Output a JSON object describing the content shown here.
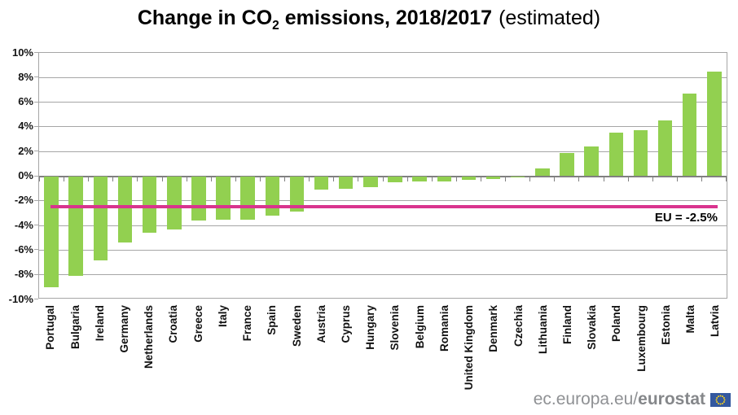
{
  "title": {
    "prefix": "Change in CO",
    "subscript": "2",
    "rest": " emissions, 2018/2017",
    "note": "(estimated)"
  },
  "chart_data": {
    "type": "bar",
    "title": "Change in CO2 emissions, 2018/2017 (estimated)",
    "categories": [
      "Portugal",
      "Bulgaria",
      "Ireland",
      "Germany",
      "Netherlands",
      "Croatia",
      "Greece",
      "Italy",
      "France",
      "Spain",
      "Sweden",
      "Austria",
      "Cyprus",
      "Hungary",
      "Slovenia",
      "Belgium",
      "Romania",
      "United Kingdom",
      "Denmark",
      "Czechia",
      "Lithuania",
      "Finland",
      "Slovakia",
      "Poland",
      "Luxembourg",
      "Estonia",
      "Malta",
      "Latvia"
    ],
    "values": [
      -9.0,
      -8.1,
      -6.8,
      -5.4,
      -4.6,
      -4.3,
      -3.6,
      -3.5,
      -3.5,
      -3.2,
      -2.9,
      -1.1,
      -1.0,
      -0.9,
      -0.5,
      -0.4,
      -0.4,
      -0.3,
      -0.2,
      -0.1,
      0.6,
      1.9,
      2.4,
      3.5,
      3.7,
      4.5,
      6.7,
      8.5
    ],
    "unit": "%",
    "ylim": [
      -10,
      10
    ],
    "ytick_step": 2,
    "ytick_labels": [
      "10%",
      "8%",
      "6%",
      "4%",
      "2%",
      "0%",
      "-2%",
      "-4%",
      "-6%",
      "-8%",
      "-10%"
    ],
    "bar_color": "#92d050",
    "gridline_color": "#a6a6a6",
    "grid": true,
    "legend": "none",
    "reference_line": {
      "value": -2.5,
      "label": "EU = -2.5%",
      "color": "#d9348e"
    }
  },
  "footer": {
    "site_prefix": "ec.europa.eu/",
    "site_bold": "eurostat",
    "flag_icon": "eu-flag-icon",
    "flag_blue": "#33589f",
    "flag_star": "#ffd617"
  }
}
